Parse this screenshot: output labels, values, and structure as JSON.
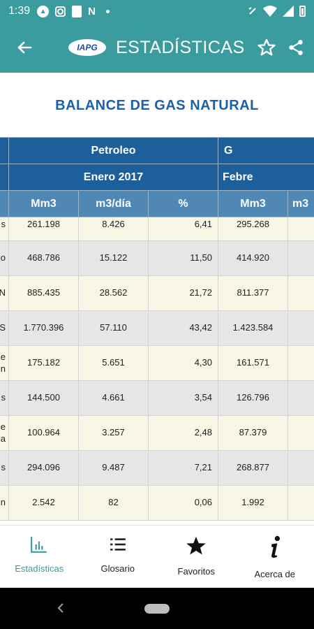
{
  "status_bar": {
    "time": "1:39",
    "n_label": "N"
  },
  "app_bar": {
    "logo_text": "IAPG",
    "title": "ESTADÍSTICAS"
  },
  "page_title": "BALANCE DE GAS NATURAL",
  "table": {
    "group_header": [
      "Petroleo",
      "G"
    ],
    "period_header": [
      "Enero 2017",
      "Febre"
    ],
    "column_headers": [
      "Mm3",
      "m3/día",
      "%",
      "Mm3",
      "m3"
    ],
    "rows": [
      {
        "label": "s",
        "label2": "",
        "values": [
          "261.198",
          "8.426",
          "6,41",
          "295.268"
        ]
      },
      {
        "label": "o",
        "label2": "",
        "values": [
          "468.786",
          "15.122",
          "11,50",
          "414.920"
        ]
      },
      {
        "label": "N",
        "label2": "",
        "values": [
          "885.435",
          "28.562",
          "21,72",
          "811.377"
        ]
      },
      {
        "label": "S",
        "label2": "",
        "values": [
          "1.770.396",
          "57.110",
          "43,42",
          "1.423.584"
        ]
      },
      {
        "label": "e",
        "label2": "n",
        "values": [
          "175.182",
          "5.651",
          "4,30",
          "161.571"
        ]
      },
      {
        "label": "s",
        "label2": "",
        "values": [
          "144.500",
          "4.661",
          "3,54",
          "126.796"
        ]
      },
      {
        "label": "e",
        "label2": "a",
        "values": [
          "100.964",
          "3.257",
          "2,48",
          "87.379"
        ]
      },
      {
        "label": "s",
        "label2": "",
        "values": [
          "294.096",
          "9.487",
          "7,21",
          "268.877"
        ]
      },
      {
        "label": "n",
        "label2": "",
        "values": [
          "2.542",
          "82",
          "0,06",
          "1.992"
        ]
      }
    ]
  },
  "bottom_nav": [
    {
      "label": "Estadísticas",
      "icon": "bar-chart-icon",
      "active": true
    },
    {
      "label": "Glosario",
      "icon": "list-icon",
      "active": false
    },
    {
      "label": "Favoritos",
      "icon": "star-icon",
      "active": false
    },
    {
      "label": "Acerca de",
      "icon": "info-icon",
      "active": false
    }
  ],
  "colors": {
    "primary": "#3a9c9e",
    "header_dark": "#1d5f9b",
    "header_light": "#4f87b5",
    "title": "#1d5fa8"
  }
}
